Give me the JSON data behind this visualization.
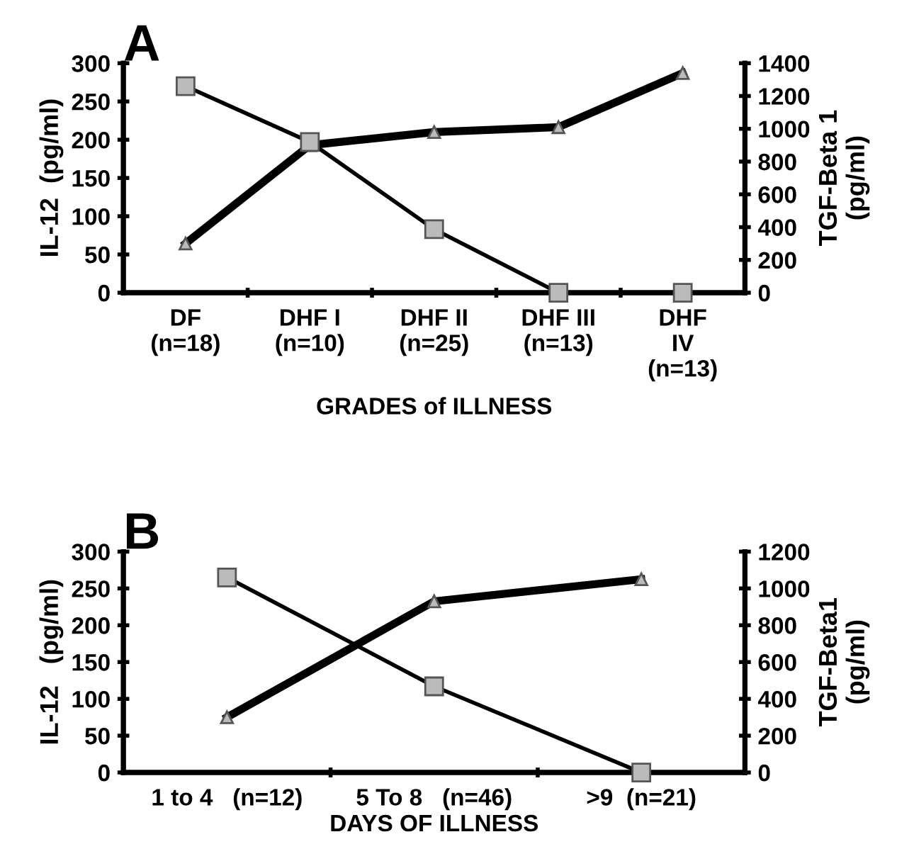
{
  "chart_data": [
    {
      "type": "line",
      "title": "A",
      "categories": [
        "DF\n(n=18)",
        "DHF I\n(n=10)",
        "DHF II\n(n=25)",
        "DHF III\n(n=13)",
        "DHF\nIV\n(n=13)"
      ],
      "xlabel": "GRADES of ILLNESS",
      "ylabel": "IL-12  (pg/ml)",
      "y2label": "TGF-Beta 1\n(pg/ml)",
      "ylim": [
        0,
        300
      ],
      "yticks": [
        0,
        50,
        100,
        150,
        200,
        250,
        300
      ],
      "y2lim": [
        0,
        1400
      ],
      "y2ticks": [
        0,
        200,
        400,
        600,
        800,
        1000,
        1200,
        1400
      ],
      "grid": false,
      "legend": false,
      "series": [
        {
          "color": "#000000",
          "marker": "square",
          "values": [
            270,
            197,
            83,
            0,
            0
          ]
        },
        {
          "color": "#000000",
          "marker": "triangle",
          "axis": "y2",
          "values": [
            300,
            900,
            980,
            1010,
            1340
          ]
        }
      ]
    },
    {
      "type": "line",
      "title": "B",
      "categories": [
        "1 to 4   (n=12)",
        "5 To 8   (n=46)",
        ">9  (n=21)"
      ],
      "xlabel": "DAYS OF ILLNESS",
      "ylabel": "IL-12   (pg/ml)",
      "y2label": "TGF-Beta1\n(pg/ml)",
      "ylim": [
        0,
        300
      ],
      "yticks": [
        0,
        50,
        100,
        150,
        200,
        250,
        300
      ],
      "y2lim": [
        0,
        1200
      ],
      "y2ticks": [
        0,
        200,
        400,
        600,
        800,
        1000,
        1200
      ],
      "grid": false,
      "legend": false,
      "series": [
        {
          "color": "#000000",
          "marker": "square",
          "values": [
            265,
            117,
            0
          ]
        },
        {
          "color": "#000000",
          "marker": "triangle",
          "axis": "y2",
          "values": [
            300,
            930,
            1050
          ]
        }
      ]
    }
  ]
}
